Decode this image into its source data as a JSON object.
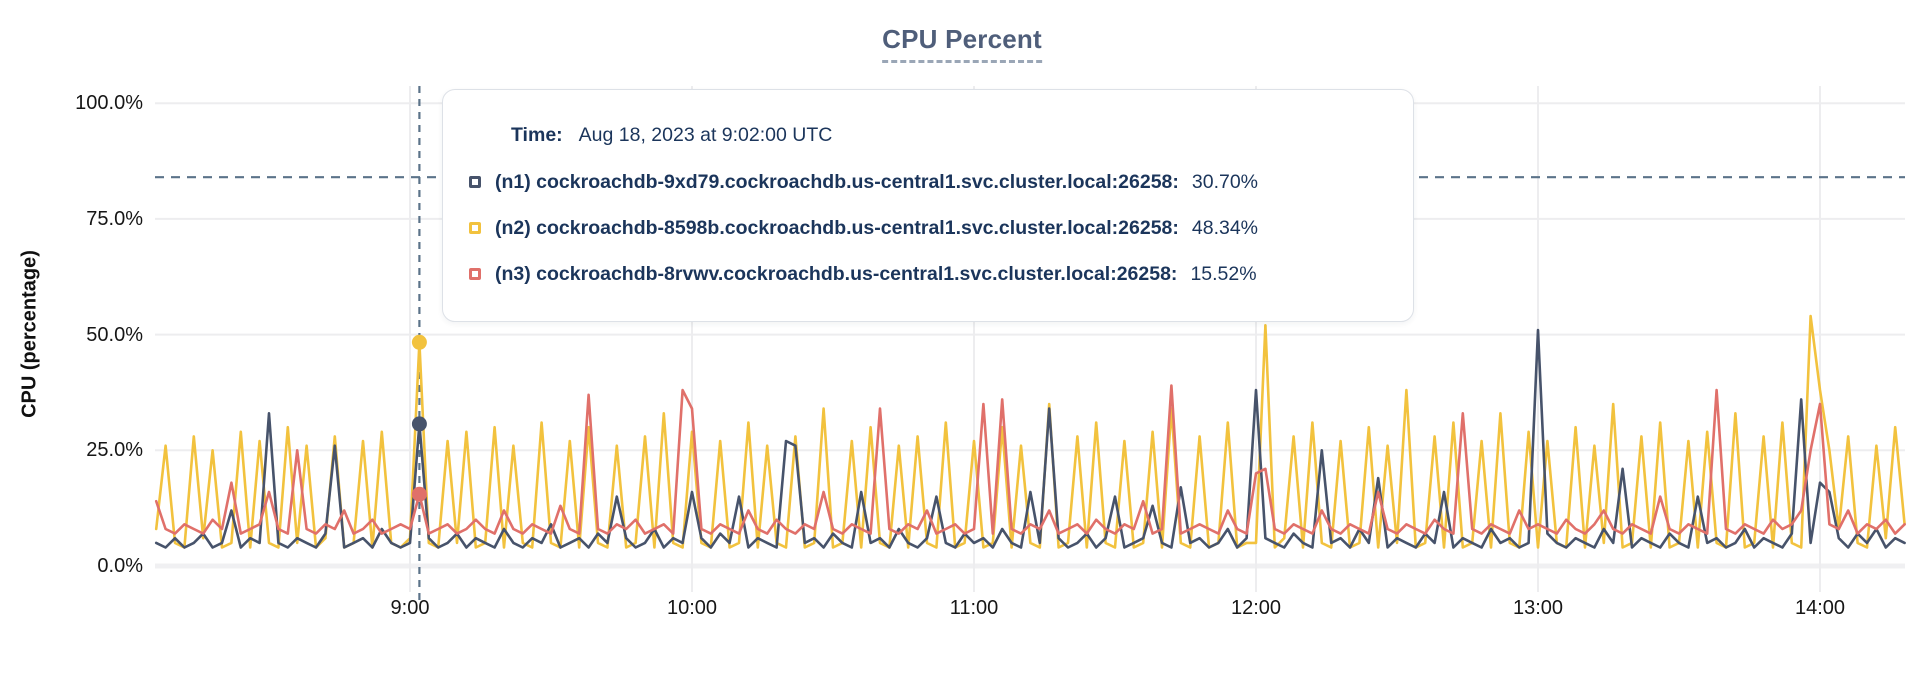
{
  "title": "CPU Percent",
  "y_axis_title": "CPU (percentage)",
  "tooltip": {
    "time_label": "Time:",
    "time_value": "Aug 18, 2023 at 9:02:00 UTC",
    "series": [
      {
        "label": "(n1) cockroachdb-9xd79.cockroachdb.us-central1.svc.cluster.local:26258:",
        "value": "30.70%"
      },
      {
        "label": "(n2) cockroachdb-8598b.cockroachdb.us-central1.svc.cluster.local:26258:",
        "value": "48.34%"
      },
      {
        "label": "(n3) cockroachdb-8rvwv.cockroachdb.us-central1.svc.cluster.local:26258:",
        "value": "15.52%"
      }
    ]
  },
  "colors": {
    "n1": "#47536b",
    "n2": "#f2c23e",
    "n3": "#e0706a",
    "grid": "#ededef",
    "axis_band": "#f0f0f2",
    "dashed": "#5b7389",
    "navy_text": "#1b355b",
    "title_text": "#4f5e7a"
  },
  "chart_data": {
    "type": "line",
    "title": "CPU Percent",
    "xlabel": "",
    "ylabel": "CPU (percentage)",
    "ylim": [
      0,
      100
    ],
    "grid": true,
    "legend_position": "tooltip-overlay",
    "yticks": [
      "0.0%",
      "25.0%",
      "50.0%",
      "75.0%",
      "100.0%"
    ],
    "ytick_values": [
      0,
      25,
      50,
      75,
      100
    ],
    "xticks": [
      "9:00",
      "10:00",
      "11:00",
      "12:00",
      "13:00",
      "14:00"
    ],
    "xtick_minutes": [
      54,
      114,
      174,
      234,
      294,
      354
    ],
    "x_start_label": "8:06",
    "x_step_minutes": 2,
    "x_total_minutes": 372,
    "threshold_percent": 84,
    "hover": {
      "minute": 56,
      "time": "Aug 18, 2023 at 9:02:00 UTC",
      "values": [
        30.7,
        48.34,
        15.52
      ],
      "series_order": [
        "n1",
        "n2",
        "n3"
      ]
    },
    "series": [
      {
        "name": "(n1) cockroachdb-9xd79.cockroachdb.us-central1.svc.cluster.local:26258",
        "color": "#47536b",
        "values": [
          5,
          4,
          6,
          4,
          5,
          7,
          4,
          5,
          12,
          4,
          6,
          5,
          33,
          5,
          4,
          6,
          5,
          4,
          7,
          26,
          4,
          5,
          6,
          4,
          8,
          5,
          4,
          5,
          30.7,
          6,
          4,
          5,
          7,
          4,
          6,
          5,
          4,
          8,
          5,
          4,
          6,
          5,
          9,
          4,
          5,
          6,
          4,
          7,
          5,
          15,
          6,
          4,
          5,
          8,
          4,
          6,
          5,
          16,
          6,
          4,
          7,
          5,
          15,
          4,
          6,
          5,
          4,
          27,
          26,
          5,
          6,
          4,
          7,
          5,
          4,
          16,
          5,
          6,
          4,
          8,
          5,
          4,
          6,
          15,
          5,
          4,
          7,
          5,
          6,
          4,
          8,
          5,
          4,
          16,
          5,
          34,
          6,
          4,
          5,
          7,
          4,
          6,
          15,
          4,
          5,
          6,
          13,
          5,
          4,
          17,
          5,
          6,
          4,
          5,
          8,
          4,
          6,
          38,
          6,
          5,
          4,
          7,
          5,
          4,
          25,
          5,
          6,
          4,
          8,
          5,
          19,
          4,
          6,
          5,
          4,
          7,
          5,
          16,
          4,
          6,
          5,
          4,
          8,
          5,
          6,
          4,
          5,
          51,
          7,
          5,
          4,
          6,
          5,
          4,
          8,
          5,
          21,
          4,
          6,
          5,
          4,
          7,
          5,
          4,
          15,
          5,
          6,
          4,
          5,
          8,
          4,
          6,
          5,
          4,
          7,
          36,
          5,
          18,
          16,
          6,
          4,
          7,
          5,
          8,
          4,
          6,
          5
        ]
      },
      {
        "name": "(n2) cockroachdb-8598b.cockroachdb.us-central1.svc.cluster.local:26258",
        "color": "#f2c23e",
        "values": [
          8,
          26,
          5,
          4,
          28,
          6,
          25,
          4,
          5,
          29,
          4,
          27,
          5,
          4,
          30,
          5,
          26,
          4,
          6,
          28,
          4,
          5,
          27,
          4,
          29,
          5,
          4,
          6,
          48.3,
          5,
          4,
          27,
          5,
          29,
          4,
          5,
          30,
          4,
          26,
          5,
          4,
          31,
          5,
          4,
          27,
          4,
          30,
          5,
          4,
          26,
          4,
          5,
          28,
          4,
          33,
          5,
          4,
          29,
          5,
          4,
          27,
          4,
          5,
          31,
          4,
          26,
          5,
          4,
          28,
          4,
          5,
          34,
          4,
          5,
          27,
          4,
          30,
          5,
          4,
          26,
          4,
          28,
          5,
          4,
          31,
          4,
          5,
          27,
          4,
          5,
          30,
          4,
          26,
          5,
          4,
          35,
          4,
          5,
          28,
          4,
          31,
          5,
          4,
          27,
          4,
          5,
          29,
          4,
          34,
          5,
          4,
          28,
          4,
          5,
          31,
          4,
          5,
          5,
          52,
          4,
          6,
          28,
          4,
          31,
          5,
          4,
          27,
          4,
          5,
          30,
          4,
          26,
          5,
          38,
          4,
          5,
          28,
          4,
          31,
          4,
          5,
          27,
          4,
          33,
          5,
          4,
          29,
          4,
          27,
          5,
          4,
          30,
          4,
          26,
          5,
          35,
          4,
          5,
          28,
          4,
          31,
          4,
          5,
          27,
          4,
          29,
          5,
          4,
          33,
          4,
          5,
          28,
          4,
          31,
          5,
          4,
          54,
          38,
          25,
          8,
          28,
          5,
          4,
          26,
          6,
          30,
          9
        ]
      },
      {
        "name": "(n3) cockroachdb-8rvwv.cockroachdb.us-central1.svc.cluster.local:26258",
        "color": "#e0706a",
        "values": [
          14,
          8,
          7,
          9,
          8,
          7,
          10,
          8,
          18,
          7,
          8,
          9,
          16,
          8,
          7,
          25,
          8,
          7,
          9,
          8,
          12,
          7,
          8,
          10,
          7,
          8,
          9,
          8,
          15.5,
          7,
          8,
          9,
          7,
          8,
          10,
          8,
          7,
          12,
          8,
          7,
          9,
          8,
          7,
          13,
          8,
          7,
          37,
          8,
          7,
          9,
          8,
          10,
          7,
          8,
          9,
          7,
          38,
          34,
          8,
          7,
          9,
          8,
          7,
          12,
          8,
          7,
          10,
          8,
          7,
          9,
          8,
          16,
          8,
          7,
          9,
          8,
          7,
          34,
          8,
          7,
          9,
          8,
          12,
          7,
          8,
          9,
          7,
          8,
          35,
          7,
          36,
          8,
          7,
          9,
          8,
          12,
          7,
          8,
          9,
          7,
          10,
          8,
          7,
          9,
          8,
          14,
          7,
          8,
          39,
          7,
          8,
          9,
          8,
          7,
          12,
          8,
          7,
          20,
          21,
          8,
          7,
          9,
          8,
          7,
          12,
          8,
          7,
          9,
          8,
          7,
          16,
          8,
          7,
          9,
          8,
          7,
          10,
          8,
          7,
          33,
          8,
          7,
          9,
          8,
          7,
          12,
          8,
          9,
          8,
          7,
          10,
          8,
          7,
          9,
          12,
          8,
          7,
          9,
          8,
          7,
          15,
          8,
          7,
          9,
          8,
          7,
          38,
          8,
          7,
          9,
          8,
          7,
          10,
          8,
          9,
          12,
          25,
          35,
          9,
          8,
          12,
          7,
          9,
          8,
          10,
          7,
          9
        ]
      }
    ]
  }
}
